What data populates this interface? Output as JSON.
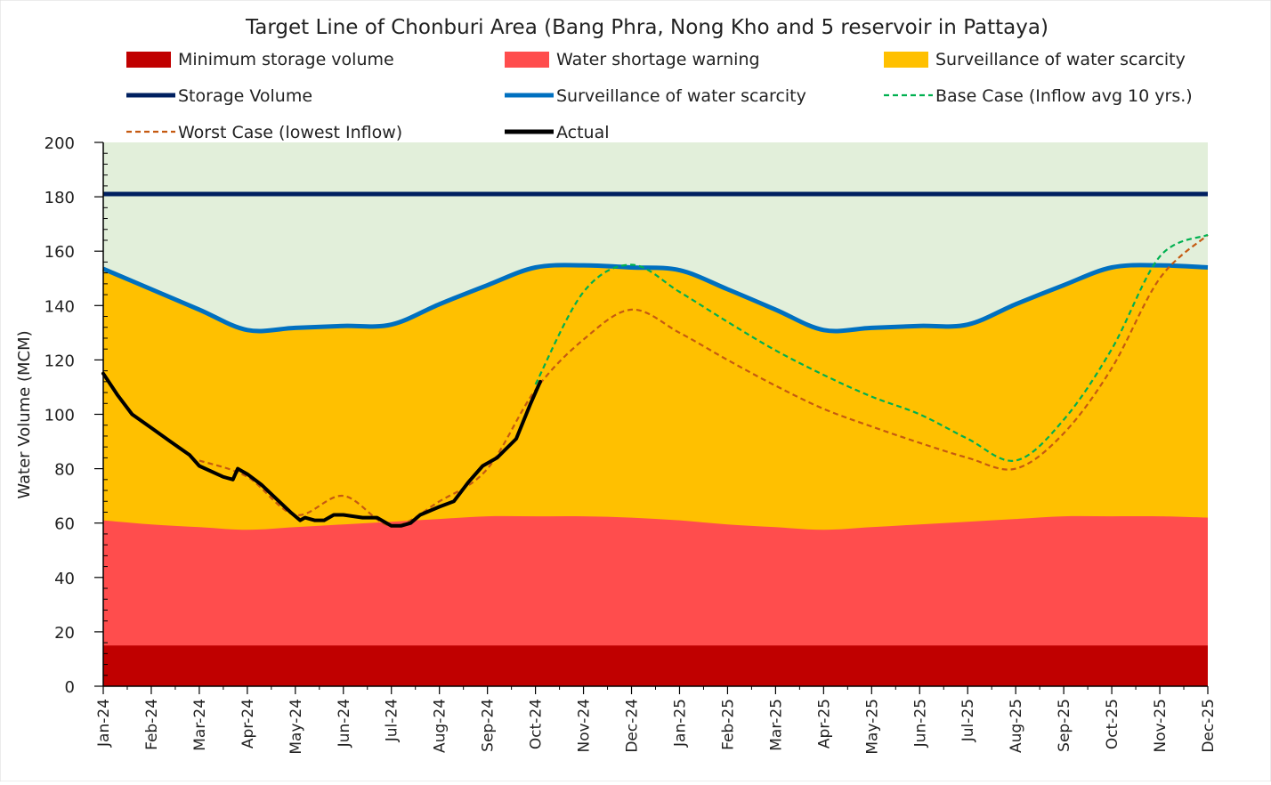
{
  "chart_data": {
    "type": "area",
    "title": "Target Line of Chonburi Area (Bang Phra, Nong Kho and 5 reservoir in Pattaya)",
    "xlabel": "",
    "ylabel": "Water Volume (MCM)",
    "ylim": [
      0,
      200
    ],
    "yticks": [
      0,
      20,
      40,
      60,
      80,
      100,
      120,
      140,
      160,
      180,
      200
    ],
    "categories": [
      "Jan-24",
      "Feb-24",
      "Mar-24",
      "Apr-24",
      "May-24",
      "Jun-24",
      "Jul-24",
      "Aug-24",
      "Sep-24",
      "Oct-24",
      "Nov-24",
      "Dec-24",
      "Jan-25",
      "Feb-25",
      "Mar-25",
      "Apr-25",
      "May-25",
      "Jun-25",
      "Jul-25",
      "Aug-25",
      "Sep-25",
      "Oct-25",
      "Nov-25",
      "Dec-25"
    ],
    "grid": true,
    "background_zone_color": "#E2EFDA",
    "legend": [
      {
        "label": "Minimum storage volume",
        "kind": "box",
        "color": "#C00000"
      },
      {
        "label": "Water shortage warning",
        "kind": "box",
        "color": "#FF4D4D"
      },
      {
        "label": "Surveillance of water scarcity",
        "kind": "box",
        "color": "#FFC000"
      },
      {
        "label": "Storage Volume",
        "kind": "line",
        "color": "#002060"
      },
      {
        "label": "Surveillance of water scarcity",
        "kind": "line",
        "color": "#0070C0"
      },
      {
        "label": "Base Case (Inflow avg 10 yrs.)",
        "kind": "dash",
        "color": "#00B050"
      },
      {
        "label": "Worst Case (lowest Inflow)",
        "kind": "dash",
        "color": "#C55A11"
      },
      {
        "label": "Actual",
        "kind": "line",
        "color": "#000000"
      }
    ],
    "series": [
      {
        "name": "Minimum storage volume",
        "kind": "area",
        "color": "#C00000",
        "values": [
          15,
          15,
          15,
          15,
          15,
          15,
          15,
          15,
          15,
          15,
          15,
          15,
          15,
          15,
          15,
          15,
          15,
          15,
          15,
          15,
          15,
          15,
          15,
          15
        ]
      },
      {
        "name": "Water shortage warning",
        "kind": "area",
        "color": "#FF4D4D",
        "values": [
          61,
          59.5,
          58.5,
          57.5,
          58.5,
          59.5,
          60.5,
          61.5,
          62.5,
          62.5,
          62.5,
          62,
          61,
          59.5,
          58.5,
          57.5,
          58.5,
          59.5,
          60.5,
          61.5,
          62.5,
          62.5,
          62.5,
          62
        ]
      },
      {
        "name": "Surveillance of water scarcity",
        "kind": "area+line",
        "color": "#FFC000",
        "line_color": "#0070C0",
        "values": [
          153.5,
          146,
          138.5,
          131,
          131.8,
          132.5,
          133,
          140.5,
          147.5,
          154,
          154.8,
          154,
          153,
          146,
          138.5,
          131,
          131.8,
          132.5,
          133,
          140.5,
          147.5,
          154,
          154.8,
          154
        ]
      },
      {
        "name": "Storage Volume",
        "kind": "line",
        "color": "#002060",
        "values": [
          181,
          181,
          181,
          181,
          181,
          181,
          181,
          181,
          181,
          181,
          181,
          181,
          181,
          181,
          181,
          181,
          181,
          181,
          181,
          181,
          181,
          181,
          181,
          181
        ]
      },
      {
        "name": "Base Case (Inflow avg 10 yrs.)",
        "kind": "dash",
        "color": "#00B050",
        "x": [
          9,
          10,
          11,
          12,
          13,
          14,
          15,
          16,
          17,
          18,
          19,
          20,
          21,
          22,
          23
        ],
        "values": [
          111,
          145,
          155,
          145,
          134,
          123.5,
          114.5,
          106.5,
          100,
          91,
          83,
          98,
          124,
          158,
          166
        ]
      },
      {
        "name": "Worst Case (lowest Inflow)",
        "kind": "dash",
        "color": "#C55A11",
        "x": [
          2,
          3,
          4,
          5,
          6,
          7,
          8,
          9,
          10,
          11,
          12,
          13,
          14,
          15,
          16,
          17,
          18,
          19,
          20,
          21,
          22,
          23
        ],
        "values": [
          83,
          77,
          63,
          70,
          59,
          68,
          80,
          109,
          127.5,
          138.5,
          130,
          120,
          110.5,
          102,
          95.5,
          89.5,
          84,
          80,
          93,
          117,
          150,
          166
        ]
      },
      {
        "name": "Actual",
        "kind": "line",
        "color": "#000000",
        "x": [
          0,
          0.3,
          0.6,
          1,
          1.4,
          1.8,
          2,
          2.5,
          2.7,
          2.8,
          3,
          3.3,
          3.6,
          3.9,
          4.1,
          4.2,
          4.4,
          4.6,
          4.8,
          5,
          5.4,
          5.7,
          6,
          6.2,
          6.4,
          6.6,
          7,
          7.3,
          7.6,
          7.9,
          8.2,
          8.6,
          8.9,
          9.1
        ],
        "values": [
          115,
          107,
          100,
          95,
          90,
          85,
          81,
          77,
          76,
          80,
          78,
          74,
          69,
          64,
          61,
          62,
          61,
          61,
          63,
          63,
          62,
          62,
          59,
          59,
          60,
          63,
          66,
          68,
          75,
          81,
          84,
          91,
          104,
          112
        ]
      }
    ]
  }
}
